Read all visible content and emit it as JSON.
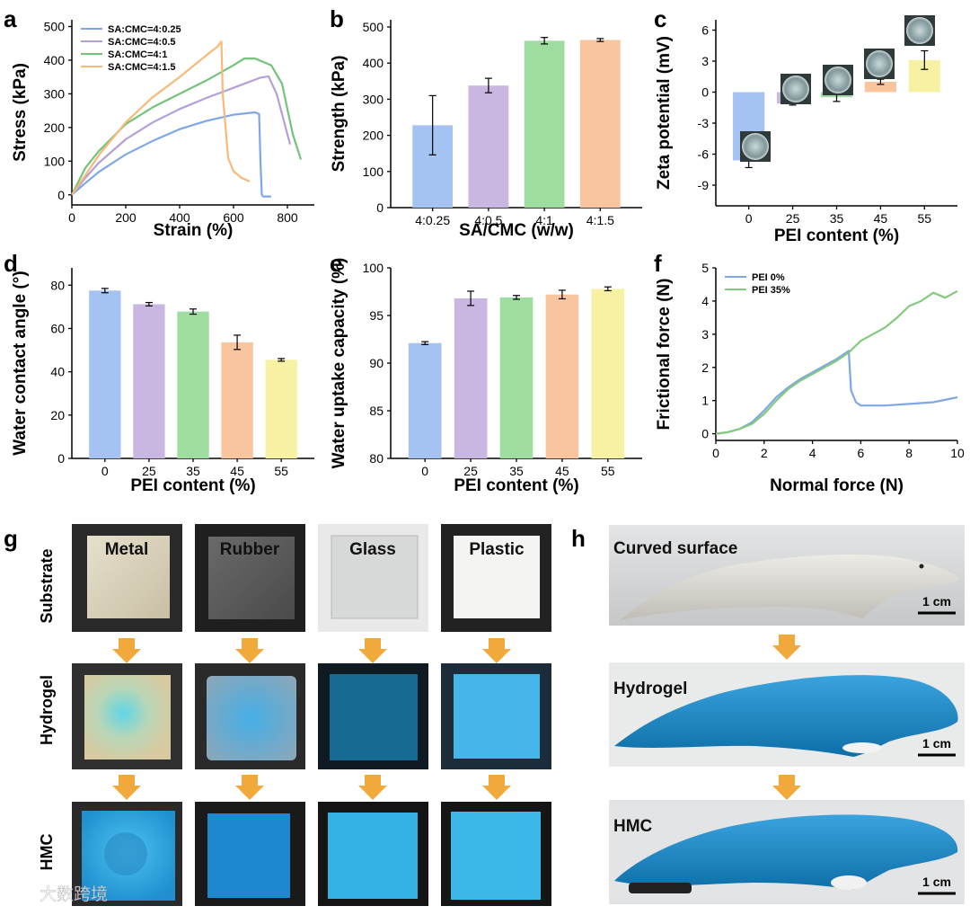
{
  "chart_data": [
    {
      "panel": "a",
      "type": "line",
      "xlabel": "Strain (%)",
      "ylabel": "Stress (kPa)",
      "xlim": [
        0,
        900
      ],
      "ylim": [
        -30,
        520
      ],
      "xticks": [
        0,
        200,
        400,
        600,
        800
      ],
      "yticks": [
        0,
        100,
        200,
        300,
        400,
        500
      ],
      "legend_position": "top-left",
      "series": [
        {
          "name": "SA:CMC=4:0.25",
          "color": "#7fa7e8",
          "x": [
            0,
            50,
            100,
            200,
            300,
            400,
            500,
            600,
            680,
            695,
            700,
            705,
            710,
            740
          ],
          "y": [
            0,
            35,
            68,
            120,
            160,
            195,
            220,
            238,
            245,
            240,
            100,
            0,
            -5,
            -5
          ]
        },
        {
          "name": "SA:CMC=4:0.5",
          "color": "#b49fd8",
          "x": [
            0,
            50,
            100,
            200,
            300,
            400,
            500,
            600,
            700,
            730,
            760,
            790,
            810
          ],
          "y": [
            0,
            50,
            95,
            165,
            215,
            255,
            288,
            318,
            348,
            352,
            300,
            210,
            150
          ]
        },
        {
          "name": "SA:CMC=4:1",
          "color": "#74c37a",
          "x": [
            0,
            50,
            100,
            200,
            300,
            400,
            500,
            600,
            640,
            680,
            740,
            780,
            820,
            850
          ],
          "y": [
            0,
            80,
            130,
            210,
            260,
            300,
            340,
            385,
            405,
            405,
            385,
            330,
            180,
            105
          ]
        },
        {
          "name": "SA:CMC=4:1.5",
          "color": "#f6b979",
          "x": [
            0,
            50,
            100,
            200,
            300,
            400,
            500,
            540,
            555,
            560,
            580,
            600,
            630,
            660
          ],
          "y": [
            0,
            58,
            118,
            215,
            290,
            350,
            415,
            440,
            455,
            300,
            110,
            70,
            50,
            40
          ]
        }
      ]
    },
    {
      "panel": "b",
      "type": "bar",
      "xlabel": "SA/CMC (w/w)",
      "ylabel": "Strength (kPa)",
      "ylim": [
        0,
        520
      ],
      "yticks": [
        0,
        100,
        200,
        300,
        400,
        500
      ],
      "categories": [
        "4:0.25",
        "4:0.5",
        "4:1",
        "4:1.5"
      ],
      "values": [
        228,
        338,
        462,
        464
      ],
      "errors": [
        82,
        20,
        9,
        4
      ],
      "colors": [
        "#a4c3f2",
        "#c9b7e2",
        "#9fdca0",
        "#f8c59f"
      ]
    },
    {
      "panel": "c",
      "type": "bar",
      "xlabel": "PEI content (%)",
      "ylabel": "Zeta potential (mV)",
      "ylim": [
        -11,
        7
      ],
      "yticks": [
        -9,
        -6,
        -3,
        0,
        3,
        6
      ],
      "categories": [
        "0",
        "25",
        "35",
        "45",
        "55"
      ],
      "values": [
        -6.6,
        -1.1,
        -0.5,
        1.0,
        3.1
      ],
      "errors": [
        0.7,
        0.15,
        0.4,
        0.25,
        0.9
      ],
      "colors": [
        "#a4c3f2",
        "#c9b7e2",
        "#9fdca0",
        "#f8c59f",
        "#f7f1a3"
      ]
    },
    {
      "panel": "d",
      "type": "bar",
      "xlabel": "PEI content (%)",
      "ylabel": "Water contact angle (°)",
      "ylim": [
        0,
        88
      ],
      "yticks": [
        0,
        20,
        40,
        60,
        80
      ],
      "categories": [
        "0",
        "25",
        "35",
        "45",
        "55"
      ],
      "values": [
        77.5,
        71.2,
        67.8,
        53.6,
        45.5
      ],
      "errors": [
        1.0,
        0.8,
        1.2,
        3.3,
        0.6
      ],
      "colors": [
        "#a4c3f2",
        "#c9b7e2",
        "#9fdca0",
        "#f8c59f",
        "#f7f1a3"
      ]
    },
    {
      "panel": "e",
      "type": "bar",
      "xlabel": "PEI content (%)",
      "ylabel": "Water uptake capacity (%)",
      "ylim": [
        80,
        100
      ],
      "yticks": [
        80,
        85,
        90,
        95,
        100
      ],
      "categories": [
        "0",
        "25",
        "35",
        "45",
        "55"
      ],
      "values": [
        92.1,
        96.8,
        96.9,
        97.2,
        97.8
      ],
      "errors": [
        0.15,
        0.75,
        0.2,
        0.45,
        0.2
      ],
      "colors": [
        "#a4c3f2",
        "#c9b7e2",
        "#9fdca0",
        "#f8c59f",
        "#f7f1a3"
      ]
    },
    {
      "panel": "f",
      "type": "line",
      "xlabel": "Normal force (N)",
      "ylabel": "Frictional force (N)",
      "xlim": [
        0,
        10
      ],
      "ylim": [
        -0.2,
        5
      ],
      "xticks": [
        0,
        2,
        4,
        6,
        8,
        10
      ],
      "yticks": [
        0,
        1,
        2,
        3,
        4,
        5
      ],
      "legend_position": "top-left",
      "series": [
        {
          "name": "PEI 0%",
          "color": "#7fa7e8",
          "x": [
            0,
            0.5,
            1,
            1.5,
            2,
            2.5,
            3,
            3.5,
            4,
            4.5,
            5,
            5.4,
            5.5,
            5.6,
            5.8,
            6,
            7,
            8,
            9,
            10
          ],
          "y": [
            0,
            0.05,
            0.15,
            0.35,
            0.7,
            1.1,
            1.4,
            1.65,
            1.85,
            2.05,
            2.25,
            2.45,
            2.5,
            1.3,
            0.95,
            0.85,
            0.85,
            0.9,
            0.95,
            1.1
          ]
        },
        {
          "name": "PEI 35%",
          "color": "#83c97f",
          "x": [
            0,
            0.5,
            1,
            1.5,
            2,
            2.5,
            3,
            3.5,
            4,
            4.5,
            5,
            5.5,
            6,
            6.5,
            7,
            7.5,
            8,
            8.5,
            9,
            9.5,
            10
          ],
          "y": [
            0,
            0.05,
            0.15,
            0.3,
            0.6,
            1.0,
            1.35,
            1.6,
            1.8,
            2.0,
            2.2,
            2.45,
            2.8,
            3.0,
            3.2,
            3.5,
            3.85,
            4.0,
            4.25,
            4.1,
            4.3
          ]
        }
      ]
    }
  ],
  "panel_letters": {
    "a": "a",
    "b": "b",
    "c": "c",
    "d": "d",
    "e": "e",
    "f": "f",
    "g": "g",
    "h": "h"
  },
  "panel_g": {
    "columns": [
      "Metal",
      "Rubber",
      "Glass",
      "Plastic"
    ],
    "rows": [
      "Substrate",
      "Hydrogel",
      "HMC"
    ]
  },
  "panel_h": {
    "labels": [
      "Curved surface",
      "Hydrogel",
      "HMC"
    ],
    "scale_bar": "1 cm"
  },
  "watermark": "大数跨境"
}
